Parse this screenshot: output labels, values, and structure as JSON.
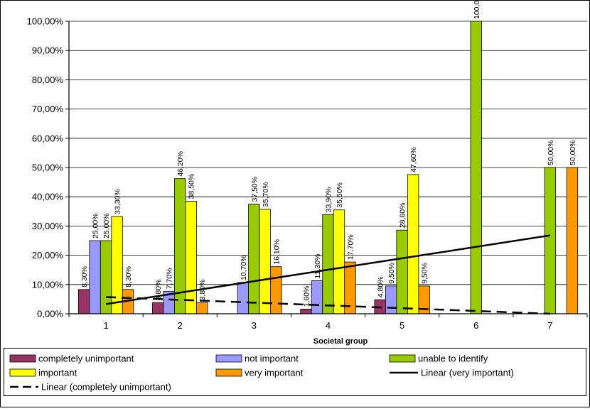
{
  "chart_data": {
    "type": "bar",
    "categories": [
      "1",
      "2",
      "3",
      "4",
      "5",
      "6",
      "7"
    ],
    "xlabel": "Societal group",
    "ylabel": "",
    "ylim": [
      0,
      100
    ],
    "y_ticks": [
      "0,00%",
      "10,00%",
      "20,00%",
      "30,00%",
      "40,00%",
      "50,00%",
      "60,00%",
      "70,00%",
      "80,00%",
      "90,00%",
      "100,00%"
    ],
    "grid": "horizontal",
    "legend_position": "bottom",
    "series": [
      {
        "name": "completely unimportant",
        "color": "#993366",
        "values": [
          8.3,
          3.8,
          null,
          1.6,
          4.8,
          null,
          null
        ],
        "labels": [
          "8,30%",
          "3,80%",
          "",
          "1,60%",
          "4,80%",
          "",
          ""
        ]
      },
      {
        "name": "not important",
        "color": "#9999FF",
        "values": [
          25.0,
          7.7,
          10.7,
          11.3,
          9.5,
          null,
          null
        ],
        "labels": [
          "25,00%",
          "7,70%",
          "10,70%",
          "11,30%",
          "9,50%",
          "",
          ""
        ]
      },
      {
        "name": "unable to identify",
        "color": "#99CC00",
        "values": [
          25.0,
          46.2,
          37.5,
          33.9,
          28.6,
          100.0,
          50.0
        ],
        "labels": [
          "25,00%",
          "46,20%",
          "37,50%",
          "33,90%",
          "28,60%",
          "100,00%",
          "50,00%"
        ]
      },
      {
        "name": "important",
        "color": "#FFFF00",
        "values": [
          33.3,
          38.5,
          35.7,
          35.5,
          47.6,
          null,
          null
        ],
        "labels": [
          "33,30%",
          "38,50%",
          "35,70%",
          "35,50%",
          "47,60%",
          "",
          ""
        ]
      },
      {
        "name": "very important",
        "color": "#FF9900",
        "values": [
          8.3,
          3.8,
          16.1,
          17.7,
          9.5,
          null,
          50.0
        ],
        "labels": [
          "8,30%",
          "3,80%",
          "16,10%",
          "17,70%",
          "9,50%",
          "",
          "50,00%"
        ]
      }
    ],
    "trendlines": [
      {
        "name": "Linear (very important)",
        "style": "solid",
        "color": "#000000",
        "start": 3.3,
        "end": 26.8
      },
      {
        "name": "Linear (completely unimportant)",
        "style": "dashed",
        "color": "#000000",
        "start": 5.7,
        "end": 0.0
      }
    ]
  }
}
